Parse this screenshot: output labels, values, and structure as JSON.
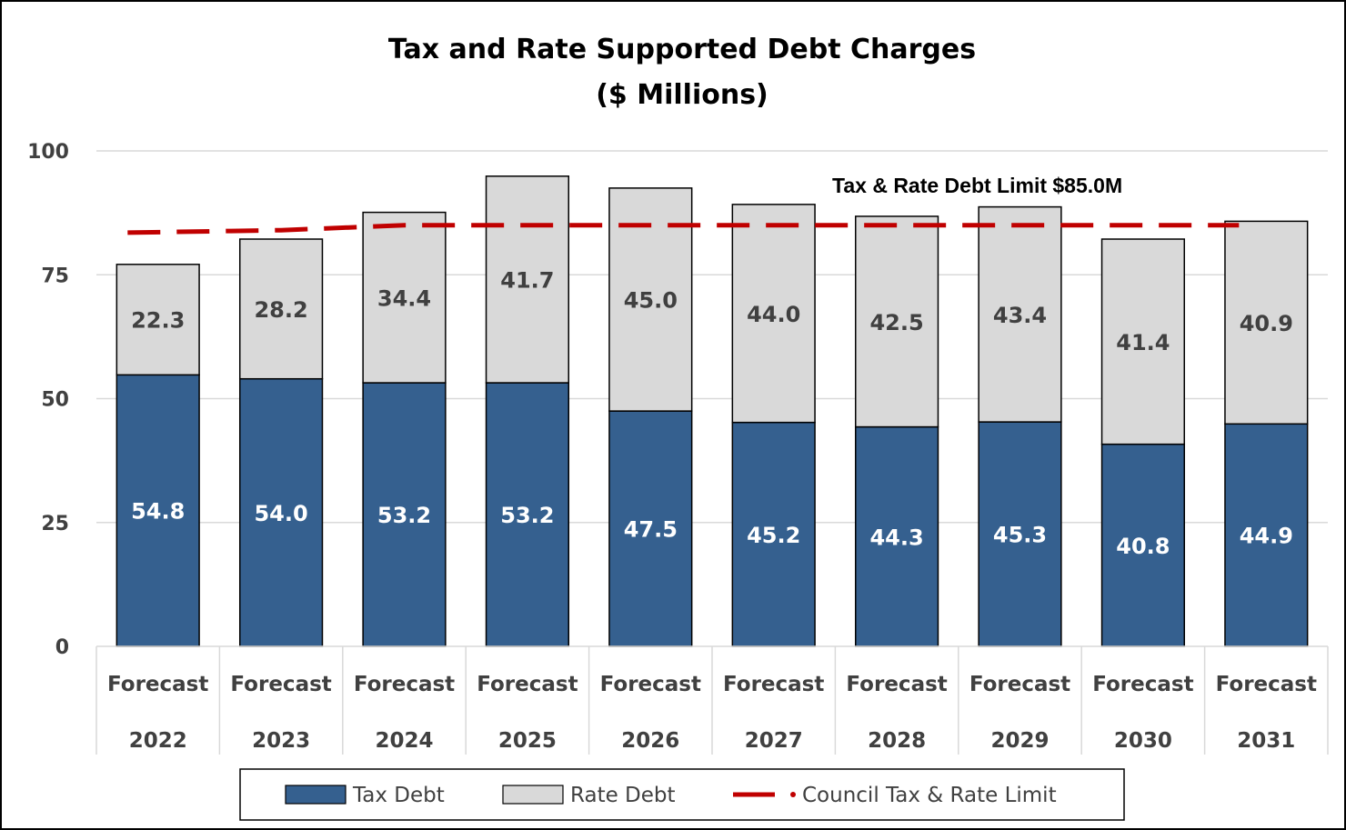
{
  "chart_data": {
    "type": "bar",
    "stacked": true,
    "title": "Tax and Rate Supported Debt Charges",
    "subtitle": "($ Millions)",
    "categories": [
      [
        "Forecast",
        "2022"
      ],
      [
        "Forecast",
        "2023"
      ],
      [
        "Forecast",
        "2024"
      ],
      [
        "Forecast",
        "2025"
      ],
      [
        "Forecast",
        "2026"
      ],
      [
        "Forecast",
        "2027"
      ],
      [
        "Forecast",
        "2028"
      ],
      [
        "Forecast",
        "2029"
      ],
      [
        "Forecast",
        "2030"
      ],
      [
        "Forecast",
        "2031"
      ]
    ],
    "series": [
      {
        "name": "Tax Debt",
        "type": "bar",
        "color": "#35608F",
        "values": [
          54.8,
          54.0,
          53.2,
          53.2,
          47.5,
          45.2,
          44.3,
          45.3,
          40.8,
          44.9
        ]
      },
      {
        "name": "Rate Debt",
        "type": "bar",
        "color": "#D9D9D9",
        "values": [
          22.3,
          28.2,
          34.4,
          41.7,
          45.0,
          44.0,
          42.5,
          43.4,
          41.4,
          40.9
        ]
      },
      {
        "name": "Council Tax & Rate Limit",
        "type": "line",
        "style": "dashed",
        "color": "#C00000",
        "values": [
          83.5,
          84.0,
          85.0,
          85.0,
          85.0,
          85.0,
          85.0,
          85.0,
          85.0,
          85.0
        ]
      }
    ],
    "annotation": "Tax & Rate Debt Limit $85.0M",
    "ylim": [
      0,
      100
    ],
    "yticks": [
      0,
      25,
      50,
      75,
      100
    ],
    "grid": true,
    "legend_position": "bottom"
  }
}
